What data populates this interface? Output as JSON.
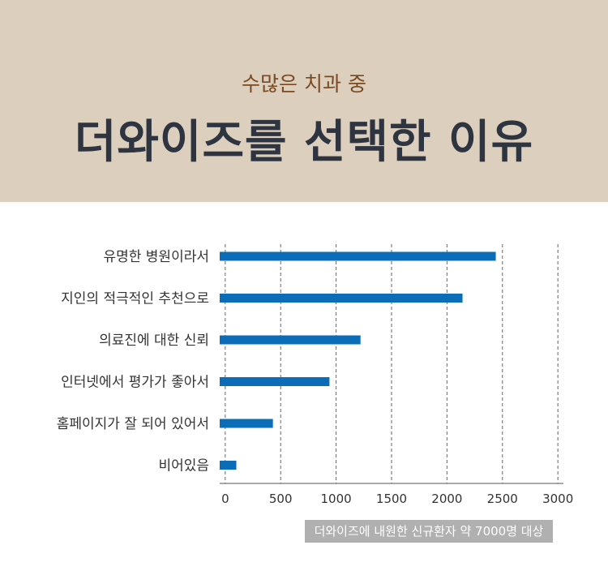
{
  "header": {
    "subtitle": "수많은 치과 중",
    "title": "더와이즈를 선택한 이유"
  },
  "chart_data": {
    "type": "bar",
    "orientation": "horizontal",
    "categories": [
      "유명한 병원이라서",
      "지인의 적극적인 추천으로",
      "의료진에 대한 신뢰",
      "인터넷에서 평가가 좋아서",
      "홈페이지가 잘 되어 있어서",
      "비어있음"
    ],
    "values": [
      2440,
      2140,
      1220,
      940,
      430,
      100
    ],
    "xlim": [
      -50,
      3050
    ],
    "xticks": [
      0,
      500,
      1000,
      1500,
      2000,
      2500,
      3000
    ],
    "grid": "vertical-dashed",
    "bar_color": "#0b6cb8",
    "title": "",
    "xlabel": "",
    "ylabel": ""
  },
  "note": "더와이즈에 내원한 신규환자 약 7000명 대상"
}
